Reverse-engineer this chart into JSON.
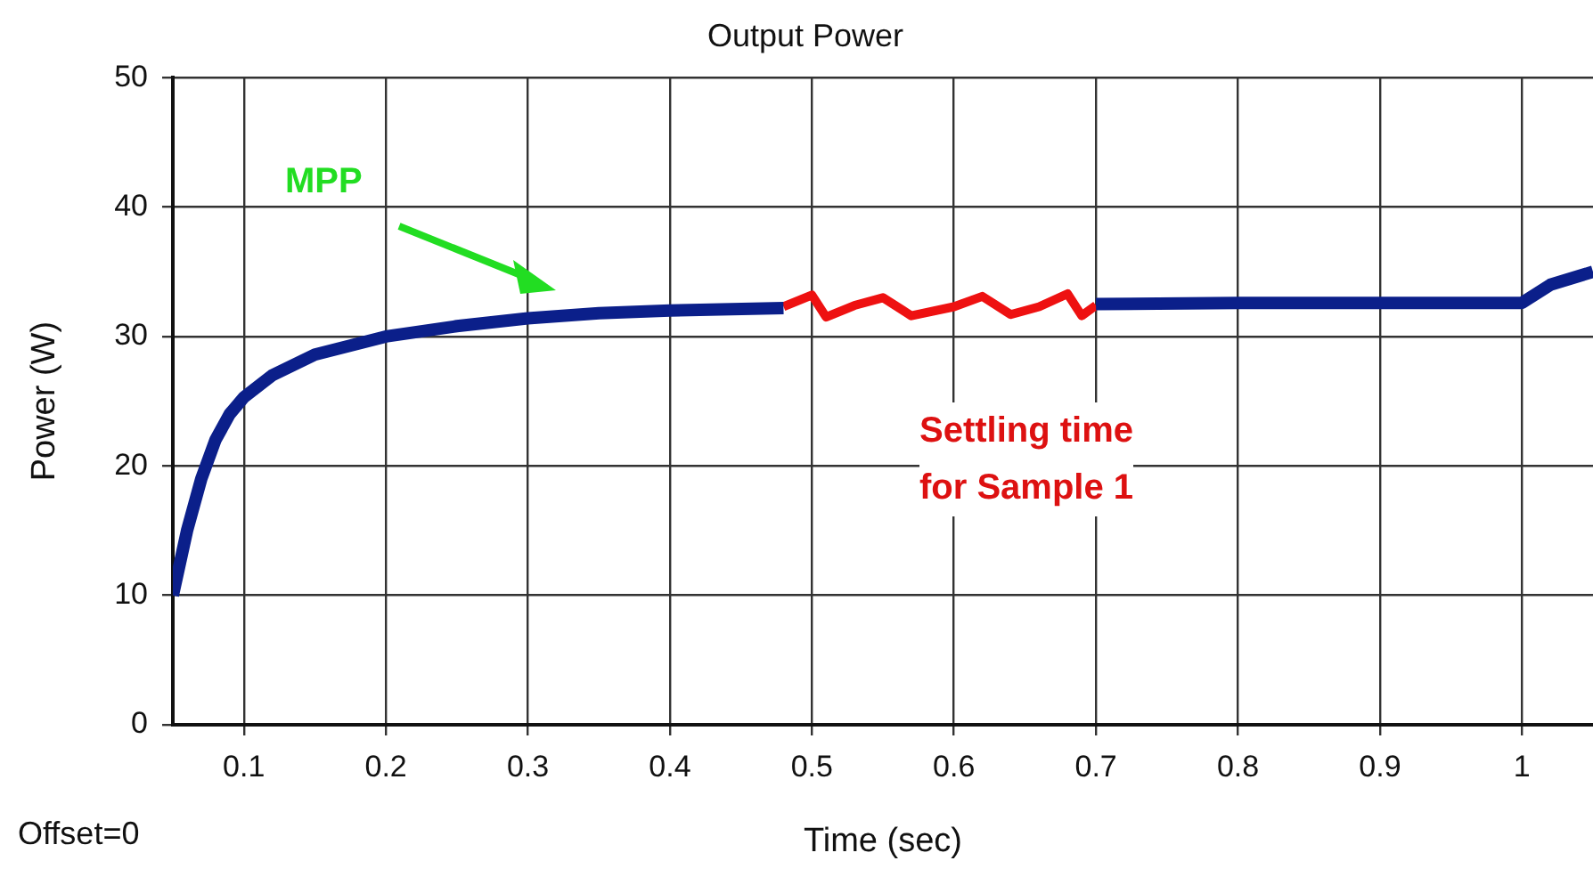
{
  "chart_data": {
    "type": "line",
    "title": "Output Power",
    "xlabel": "Time (sec)",
    "ylabel": "Power (W)",
    "xlim": [
      0.05,
      1.05
    ],
    "xticks": [
      0.1,
      0.2,
      0.3,
      0.4,
      0.5,
      0.6,
      0.7,
      0.8,
      0.9,
      1
    ],
    "ylim": [
      0,
      50
    ],
    "yticks": [
      0,
      10,
      20,
      30,
      40,
      50
    ],
    "grid": true,
    "legend": false,
    "marker": "none",
    "series": [
      {
        "color": "#0b1f8a",
        "x": [
          0.05,
          0.06,
          0.07,
          0.08,
          0.09,
          0.1,
          0.12,
          0.15,
          0.2,
          0.25,
          0.3,
          0.35,
          0.4,
          0.48,
          0.6,
          0.7,
          0.8,
          0.9,
          1.0,
          1.02,
          1.05
        ],
        "values": [
          10,
          15,
          19,
          22,
          24,
          25.3,
          27,
          28.6,
          30,
          30.8,
          31.4,
          31.8,
          32,
          32.2,
          null,
          32.5,
          32.6,
          32.6,
          32.6,
          34,
          35
        ]
      },
      {
        "color": "#ee1111",
        "x": [
          0.48,
          0.5,
          0.51,
          0.53,
          0.55,
          0.57,
          0.6,
          0.62,
          0.64,
          0.66,
          0.68,
          0.69,
          0.7
        ],
        "values": [
          32.3,
          33.2,
          31.5,
          32.4,
          33,
          31.6,
          32.3,
          33.1,
          31.7,
          32.3,
          33.3,
          31.6,
          32.4
        ]
      }
    ],
    "annotations": [
      "MPP",
      "Settling time\nfor Sample 1",
      "Offset=0"
    ]
  }
}
